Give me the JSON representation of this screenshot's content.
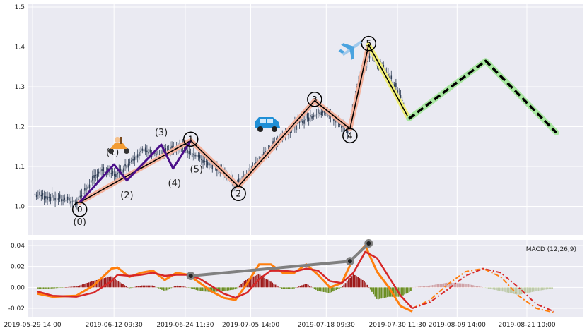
{
  "colors": {
    "panel_bg": "#eaeaf2",
    "grid": "#ffffff",
    "candle": "#2f3e55",
    "wave_main": "#000000",
    "wave_main_band": "#f4b39e",
    "wave_sub": "#4b0f8a",
    "wave_proj": "#000000",
    "wave_proj_band": "#a8e6a0",
    "last_leg_band": "#f0ef7a",
    "macd_line": "#ff7f0e",
    "signal_line": "#d62728",
    "hist_pos": "#9e1a1a",
    "hist_neg": "#6b8e23",
    "divergence": "#808080"
  },
  "icons": [
    "scooter-icon",
    "car-icon",
    "airplane-icon"
  ],
  "chart_data": [
    {
      "type": "candlestick",
      "panel": "price",
      "ylim": [
        0.93,
        1.5
      ],
      "yticks": [
        "1.0",
        "1.1",
        "1.2",
        "1.3",
        "1.4",
        "1.5"
      ],
      "grid": true,
      "main_wave": {
        "x": [
          "2019-06-06 14:00",
          "2019-06-25 10:00",
          "2019-07-03 12:00",
          "2019-07-16 10:00",
          "2019-07-22 10:00",
          "2019-07-25 14:00",
          "2019-08-01 10:00"
        ],
        "y": [
          1.01,
          1.165,
          1.05,
          1.265,
          1.195,
          1.405,
          1.22
        ],
        "labels": [
          "0",
          "1",
          "2",
          "3",
          "4",
          "5",
          ""
        ]
      },
      "sub_wave": {
        "x": [
          "2019-06-06 14:00",
          "2019-06-12 09:30",
          "2019-06-14 14:00",
          "2019-06-20 10:00",
          "2019-06-22 10:00",
          "2019-06-25 10:00"
        ],
        "y": [
          1.01,
          1.105,
          1.065,
          1.155,
          1.095,
          1.165
        ],
        "labels": [
          "(0)",
          "(1)",
          "(2)",
          "(3)",
          "(4)",
          "(5)"
        ]
      },
      "projection": {
        "x": [
          "2019-08-01 10:00",
          "2019-08-14 10:00",
          "2019-08-26 10:00"
        ],
        "y": [
          1.22,
          1.365,
          1.185
        ]
      },
      "candles_sampled": {
        "x": [
          "2019-05-30",
          "2019-06-03",
          "2019-06-06",
          "2019-06-10",
          "2019-06-13",
          "2019-06-17",
          "2019-06-20",
          "2019-06-24",
          "2019-06-27",
          "2019-07-01",
          "2019-07-03",
          "2019-07-08",
          "2019-07-11",
          "2019-07-15",
          "2019-07-18",
          "2019-07-22",
          "2019-07-24",
          "2019-07-26",
          "2019-07-29",
          "2019-07-31",
          "2019-08-01"
        ],
        "close": [
          1.03,
          1.02,
          1.01,
          1.09,
          1.08,
          1.14,
          1.13,
          1.15,
          1.12,
          1.09,
          1.05,
          1.13,
          1.18,
          1.22,
          1.24,
          1.19,
          1.32,
          1.38,
          1.33,
          1.28,
          1.23
        ]
      }
    },
    {
      "type": "line",
      "panel": "macd",
      "legend": "MACD (12,26,9)",
      "ylim": [
        -0.025,
        0.045
      ],
      "yticks": [
        "0.04",
        "0.02",
        "0.00",
        "-0.02"
      ],
      "xticks": [
        "2019-05-29 14:00",
        "2019-06-12 09:30",
        "2019-06-24 11:30",
        "2019-07-05 14:00",
        "2019-07-18 09:30",
        "2019-07-30 11:30",
        "2019-08-09 14:00",
        "2019-08-21 10:00"
      ],
      "series": [
        {
          "role": "macd",
          "x": [
            "2019-05-30 10:00",
            "2019-06-02",
            "2019-06-06",
            "2019-06-09",
            "2019-06-12",
            "2019-06-13",
            "2019-06-15",
            "2019-06-17",
            "2019-06-19",
            "2019-06-21",
            "2019-06-23",
            "2019-06-25",
            "2019-06-27",
            "2019-06-29",
            "2019-07-01",
            "2019-07-03",
            "2019-07-05",
            "2019-07-07",
            "2019-07-09",
            "2019-07-11",
            "2019-07-13",
            "2019-07-15",
            "2019-07-17",
            "2019-07-19",
            "2019-07-21",
            "2019-07-23",
            "2019-07-25",
            "2019-07-27",
            "2019-07-29",
            "2019-07-31",
            "2019-08-02"
          ],
          "y": [
            -0.006,
            -0.009,
            -0.008,
            0.002,
            0.018,
            0.019,
            0.01,
            0.014,
            0.016,
            0.007,
            0.014,
            0.012,
            0.004,
            -0.004,
            -0.01,
            -0.012,
            0.004,
            0.022,
            0.022,
            0.014,
            0.014,
            0.022,
            0.012,
            0.0,
            0.004,
            0.028,
            0.04,
            0.015,
            0.0,
            -0.018,
            -0.023
          ]
        },
        {
          "role": "signal",
          "x": [
            "2019-05-30 10:00",
            "2019-06-02",
            "2019-06-06",
            "2019-06-09",
            "2019-06-12",
            "2019-06-13",
            "2019-06-15",
            "2019-06-17",
            "2019-06-19",
            "2019-06-21",
            "2019-06-23",
            "2019-06-25",
            "2019-06-27",
            "2019-06-29",
            "2019-07-01",
            "2019-07-03",
            "2019-07-05",
            "2019-07-07",
            "2019-07-09",
            "2019-07-11",
            "2019-07-13",
            "2019-07-15",
            "2019-07-17",
            "2019-07-19",
            "2019-07-21",
            "2019-07-23",
            "2019-07-25",
            "2019-07-27",
            "2019-07-29",
            "2019-07-31",
            "2019-08-02"
          ],
          "y": [
            -0.004,
            -0.008,
            -0.009,
            -0.005,
            0.006,
            0.012,
            0.011,
            0.012,
            0.014,
            0.011,
            0.012,
            0.012,
            0.008,
            0.001,
            -0.006,
            -0.01,
            -0.005,
            0.008,
            0.016,
            0.016,
            0.015,
            0.018,
            0.016,
            0.006,
            0.004,
            0.014,
            0.034,
            0.028,
            0.01,
            -0.008,
            -0.02
          ]
        },
        {
          "role": "macd-forecast",
          "x": [
            "2019-08-02",
            "2019-08-05",
            "2019-08-08",
            "2019-08-11",
            "2019-08-14",
            "2019-08-17",
            "2019-08-20",
            "2019-08-23",
            "2019-08-26"
          ],
          "y": [
            -0.02,
            -0.012,
            0.003,
            0.015,
            0.018,
            0.01,
            -0.008,
            -0.02,
            -0.024
          ]
        },
        {
          "role": "signal-forecast",
          "x": [
            "2019-08-02",
            "2019-08-05",
            "2019-08-08",
            "2019-08-11",
            "2019-08-14",
            "2019-08-17",
            "2019-08-20",
            "2019-08-23",
            "2019-08-26"
          ],
          "y": [
            -0.02,
            -0.014,
            -0.002,
            0.011,
            0.018,
            0.014,
            0.0,
            -0.016,
            -0.023
          ]
        }
      ],
      "divergence": {
        "x": [
          "2019-06-25 10:00",
          "2019-07-22 10:00",
          "2019-07-25 14:00"
        ],
        "y": [
          0.011,
          0.025,
          0.042
        ]
      }
    }
  ]
}
